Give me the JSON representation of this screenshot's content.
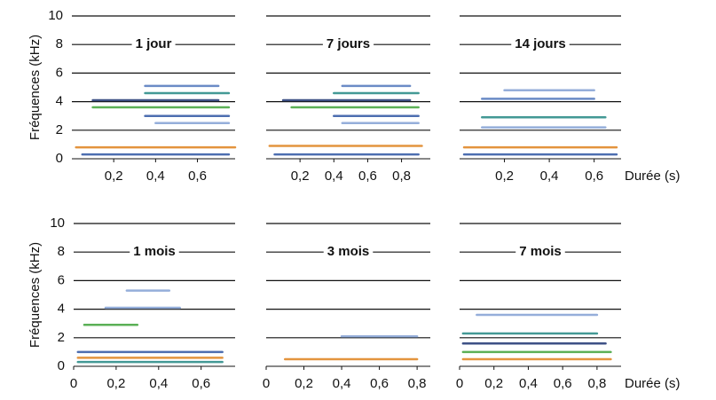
{
  "chart_data": [
    {
      "type": "spectrogram",
      "title": "1 jour",
      "ylabel": "Fréquences (kHz)",
      "show_ytick_labels": true,
      "xlim": [
        0,
        0.78
      ],
      "xticks": [
        {
          "value": 0.2,
          "label": "0,2"
        },
        {
          "value": 0.4,
          "label": "0,4"
        },
        {
          "value": 0.6,
          "label": "0,6"
        }
      ],
      "ylim": [
        0,
        10
      ],
      "yticks": [
        0,
        2,
        4,
        6,
        8,
        10
      ],
      "grid": true,
      "bands": [
        {
          "freq": 0.3,
          "start": 0.05,
          "end": 0.75,
          "color": "#3a5fa8"
        },
        {
          "freq": 0.8,
          "start": 0.02,
          "end": 0.78,
          "color": "#e0892a"
        },
        {
          "freq": 2.5,
          "start": 0.4,
          "end": 0.75,
          "color": "#8aa6d6"
        },
        {
          "freq": 3.0,
          "start": 0.35,
          "end": 0.75,
          "color": "#3a5fa8"
        },
        {
          "freq": 3.6,
          "start": 0.1,
          "end": 0.75,
          "color": "#4aa844"
        },
        {
          "freq": 4.1,
          "start": 0.1,
          "end": 0.7,
          "color": "#2a3f7a"
        },
        {
          "freq": 4.6,
          "start": 0.35,
          "end": 0.75,
          "color": "#2f8f8a"
        },
        {
          "freq": 5.1,
          "start": 0.35,
          "end": 0.7,
          "color": "#5b7fc0"
        }
      ]
    },
    {
      "type": "spectrogram",
      "title": "7 jours",
      "show_ytick_labels": false,
      "xlim": [
        0,
        0.97
      ],
      "xticks": [
        {
          "value": 0.2,
          "label": "0,2"
        },
        {
          "value": 0.4,
          "label": "0,4"
        },
        {
          "value": 0.6,
          "label": "0,6"
        },
        {
          "value": 0.8,
          "label": "0,8"
        }
      ],
      "ylim": [
        0,
        10
      ],
      "yticks": [
        0,
        2,
        4,
        6,
        8,
        10
      ],
      "grid": true,
      "bands": [
        {
          "freq": 0.3,
          "start": 0.05,
          "end": 0.9,
          "color": "#3a5fa8"
        },
        {
          "freq": 0.9,
          "start": 0.02,
          "end": 0.92,
          "color": "#e0892a"
        },
        {
          "freq": 2.5,
          "start": 0.45,
          "end": 0.9,
          "color": "#8aa6d6"
        },
        {
          "freq": 3.0,
          "start": 0.4,
          "end": 0.9,
          "color": "#3a5fa8"
        },
        {
          "freq": 3.6,
          "start": 0.15,
          "end": 0.9,
          "color": "#4aa844"
        },
        {
          "freq": 4.1,
          "start": 0.1,
          "end": 0.85,
          "color": "#2a3f7a"
        },
        {
          "freq": 4.6,
          "start": 0.4,
          "end": 0.9,
          "color": "#2f8f8a"
        },
        {
          "freq": 5.1,
          "start": 0.45,
          "end": 0.85,
          "color": "#5b7fc0"
        }
      ]
    },
    {
      "type": "spectrogram",
      "title": "14 jours",
      "xlabel": "Durée (s)",
      "show_ytick_labels": false,
      "xlim": [
        0,
        0.72
      ],
      "xticks": [
        {
          "value": 0.2,
          "label": "0,2"
        },
        {
          "value": 0.4,
          "label": "0,4"
        },
        {
          "value": 0.6,
          "label": "0,6"
        }
      ],
      "ylim": [
        0,
        10
      ],
      "yticks": [
        0,
        2,
        4,
        6,
        8,
        10
      ],
      "grid": true,
      "bands": [
        {
          "freq": 0.3,
          "start": 0.02,
          "end": 0.7,
          "color": "#3a5fa8"
        },
        {
          "freq": 0.8,
          "start": 0.02,
          "end": 0.7,
          "color": "#e0892a"
        },
        {
          "freq": 2.2,
          "start": 0.1,
          "end": 0.65,
          "color": "#8aa6d6"
        },
        {
          "freq": 2.9,
          "start": 0.1,
          "end": 0.65,
          "color": "#2f8f8a"
        },
        {
          "freq": 4.2,
          "start": 0.1,
          "end": 0.6,
          "color": "#5b7fc0"
        },
        {
          "freq": 4.8,
          "start": 0.2,
          "end": 0.6,
          "color": "#8aa6d6"
        }
      ]
    },
    {
      "type": "spectrogram",
      "title": "1 mois",
      "ylabel": "Fréquences (kHz)",
      "show_ytick_labels": true,
      "xlim": [
        0,
        0.76
      ],
      "xticks": [
        0,
        {
          "value": 0.2,
          "label": "0,2"
        },
        {
          "value": 0.4,
          "label": "0,4"
        },
        {
          "value": 0.6,
          "label": "0,6"
        }
      ],
      "ylim": [
        0,
        10
      ],
      "yticks": [
        0,
        2,
        4,
        6,
        8,
        10
      ],
      "grid": true,
      "bands": [
        {
          "freq": 0.3,
          "start": 0.02,
          "end": 0.7,
          "color": "#2f8f8a"
        },
        {
          "freq": 0.6,
          "start": 0.02,
          "end": 0.7,
          "color": "#e0892a"
        },
        {
          "freq": 1.0,
          "start": 0.02,
          "end": 0.7,
          "color": "#3a5fa8"
        },
        {
          "freq": 2.9,
          "start": 0.05,
          "end": 0.3,
          "color": "#4aa844"
        },
        {
          "freq": 4.1,
          "start": 0.15,
          "end": 0.5,
          "color": "#8aa6d6"
        },
        {
          "freq": 5.3,
          "start": 0.25,
          "end": 0.45,
          "color": "#8aa6d6"
        }
      ]
    },
    {
      "type": "spectrogram",
      "title": "3 mois",
      "show_ytick_labels": false,
      "xlim": [
        0,
        0.87
      ],
      "xticks": [
        0,
        {
          "value": 0.2,
          "label": "0,2"
        },
        {
          "value": 0.4,
          "label": "0,4"
        },
        {
          "value": 0.6,
          "label": "0,6"
        },
        {
          "value": 0.8,
          "label": "0,8"
        }
      ],
      "ylim": [
        0,
        10
      ],
      "yticks": [
        0,
        2,
        4,
        6,
        8,
        10
      ],
      "grid": true,
      "bands": [
        {
          "freq": 0.5,
          "start": 0.1,
          "end": 0.8,
          "color": "#e0892a"
        },
        {
          "freq": 2.1,
          "start": 0.4,
          "end": 0.8,
          "color": "#8aa6d6"
        }
      ]
    },
    {
      "type": "spectrogram",
      "title": "7 mois",
      "xlabel": "Durée (s)",
      "show_ytick_labels": false,
      "xlim": [
        0,
        0.94
      ],
      "xticks": [
        0,
        {
          "value": 0.2,
          "label": "0,2"
        },
        {
          "value": 0.4,
          "label": "0,4"
        },
        {
          "value": 0.6,
          "label": "0,6"
        },
        {
          "value": 0.8,
          "label": "0,8"
        }
      ],
      "ylim": [
        0,
        10
      ],
      "yticks": [
        0,
        2,
        4,
        6,
        8,
        10
      ],
      "grid": true,
      "bands": [
        {
          "freq": 0.5,
          "start": 0.02,
          "end": 0.88,
          "color": "#e0892a"
        },
        {
          "freq": 1.0,
          "start": 0.02,
          "end": 0.88,
          "color": "#4aa844"
        },
        {
          "freq": 1.6,
          "start": 0.02,
          "end": 0.85,
          "color": "#2a3f7a"
        },
        {
          "freq": 2.3,
          "start": 0.02,
          "end": 0.8,
          "color": "#2f8f8a"
        },
        {
          "freq": 3.6,
          "start": 0.1,
          "end": 0.8,
          "color": "#8aa6d6"
        }
      ]
    }
  ]
}
